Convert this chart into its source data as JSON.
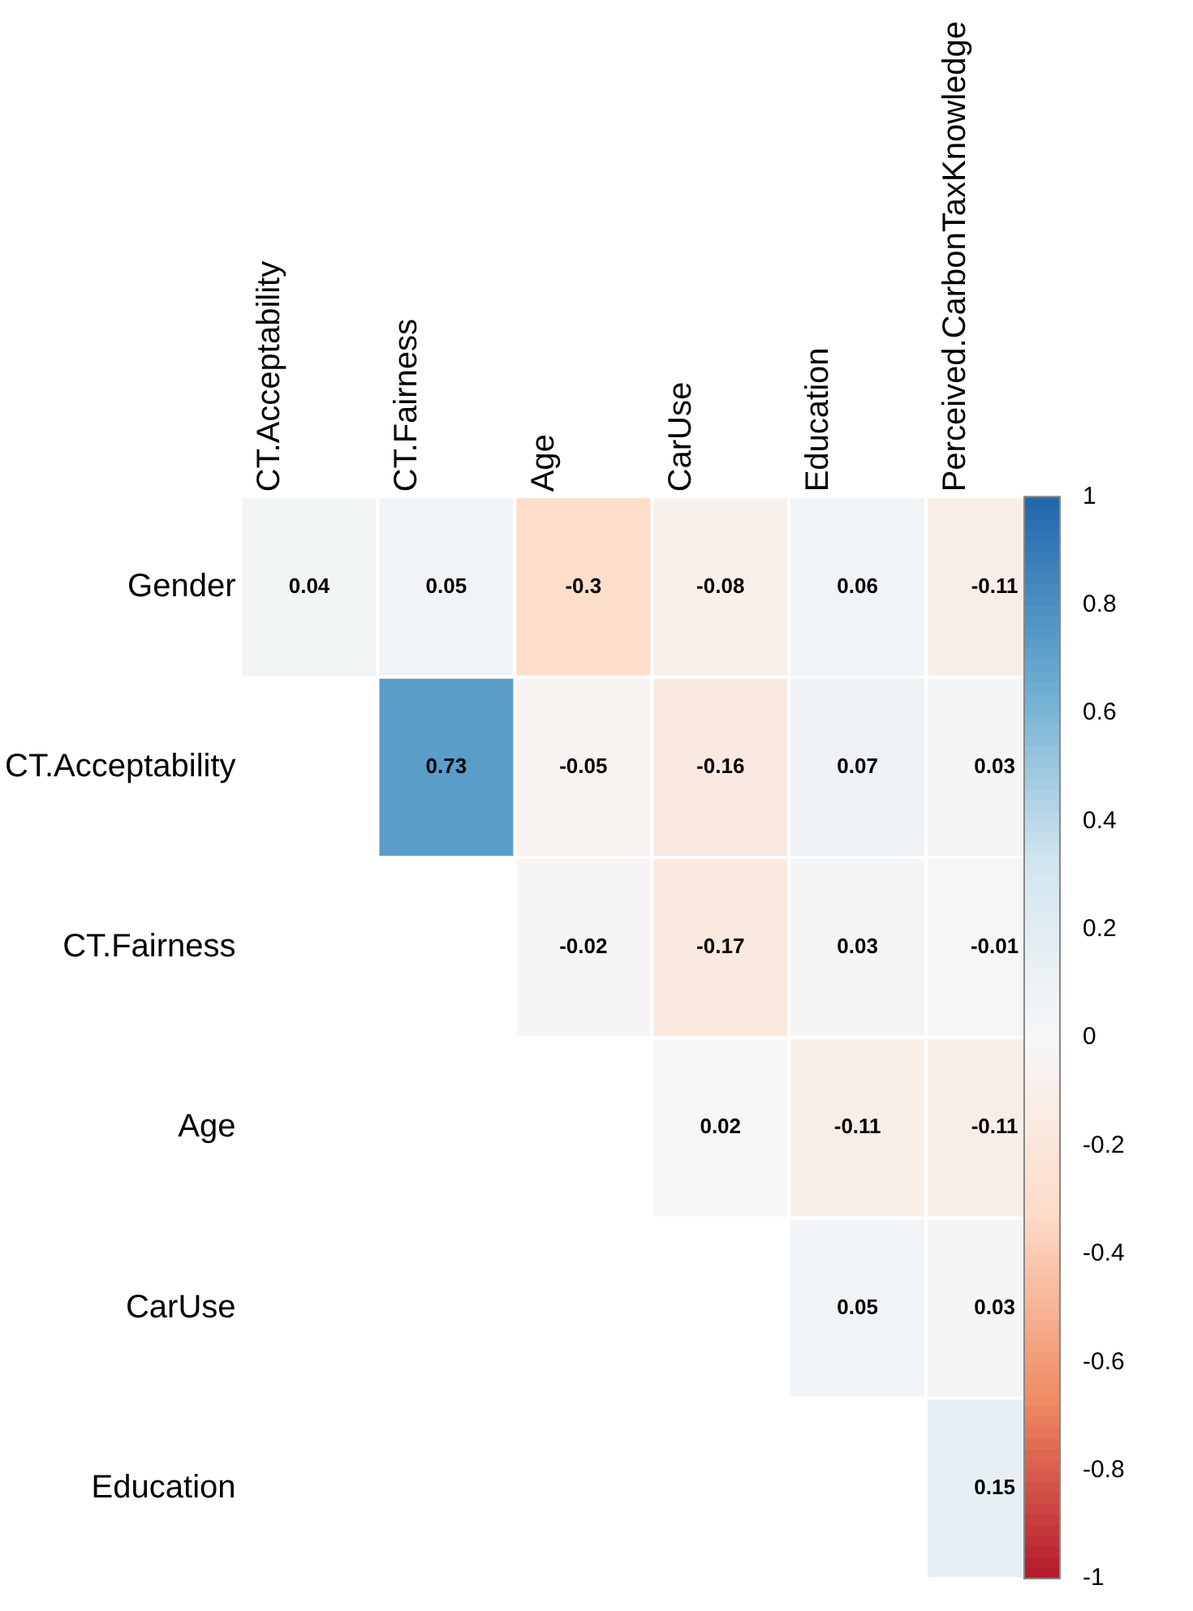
{
  "chart_data": {
    "type": "heatmap",
    "categories": [
      "CT.Acceptability",
      "CT.Fairness",
      "Age",
      "CarUse",
      "Education",
      "Perceived.CarbonTaxKnowledge"
    ],
    "y_categories": [
      "Gender",
      "CT.Acceptability",
      "CT.Fairness",
      "Age",
      "CarUse",
      "Education"
    ],
    "cells": [
      [
        0.04,
        0.05,
        -0.3,
        -0.08,
        0.06,
        -0.11
      ],
      [
        null,
        0.73,
        -0.05,
        -0.16,
        0.07,
        0.03
      ],
      [
        null,
        null,
        -0.02,
        -0.17,
        0.03,
        -0.01
      ],
      [
        null,
        null,
        null,
        0.02,
        -0.11,
        -0.11
      ],
      [
        null,
        null,
        null,
        null,
        0.05,
        0.03
      ],
      [
        null,
        null,
        null,
        null,
        null,
        0.15
      ]
    ],
    "clim": [
      -1,
      1
    ],
    "cticks": [
      -1,
      -0.8,
      -0.6,
      -0.4,
      -0.2,
      0,
      0.2,
      0.4,
      0.6,
      0.8,
      1
    ],
    "data_labels": true,
    "grid": false
  }
}
